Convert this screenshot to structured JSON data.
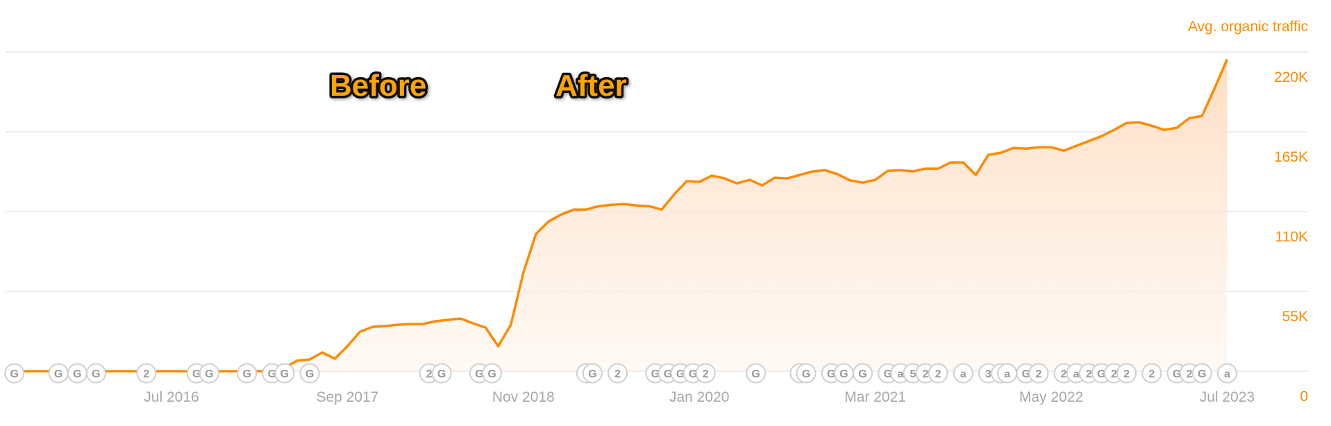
{
  "chart_data": {
    "type": "area",
    "title": "",
    "ylabel": "Avg. organic traffic",
    "y_axis_position": "right",
    "ylim": [
      0,
      220000
    ],
    "y_ticks": [
      0,
      55000,
      110000,
      165000,
      220000
    ],
    "y_tick_labels": [
      "0",
      "55K",
      "110K",
      "165K",
      "220K"
    ],
    "x_tick_labels": [
      "Jul 2016",
      "Sep 2017",
      "Nov 2018",
      "Jan 2020",
      "Mar 2021",
      "May 2022",
      "Jul 2023"
    ],
    "x_ticks": [
      "2016-07",
      "2017-09",
      "2018-11",
      "2020-01",
      "2021-03",
      "2022-05",
      "2023-07"
    ],
    "grid": true,
    "colors": {
      "line": "#ff8a00",
      "fill": "#fde1c8",
      "grid": "#e6e6e6",
      "divider": "#f5b400",
      "annotation_text": "#ffa400"
    },
    "series": [
      {
        "x": [
          "2015-06",
          "2015-07",
          "2015-08",
          "2015-09",
          "2015-10",
          "2015-11",
          "2015-12",
          "2016-01",
          "2016-02",
          "2016-03",
          "2016-04",
          "2016-05",
          "2016-06",
          "2016-07",
          "2016-08",
          "2016-09",
          "2016-10",
          "2016-11",
          "2016-12",
          "2017-01",
          "2017-02",
          "2017-03",
          "2017-04",
          "2017-05",
          "2017-06",
          "2017-07",
          "2017-08",
          "2017-09",
          "2017-10",
          "2017-11",
          "2017-12",
          "2018-01",
          "2018-02",
          "2018-03",
          "2018-04",
          "2018-05",
          "2018-06",
          "2018-07",
          "2018-08",
          "2018-09",
          "2018-10",
          "2018-11",
          "2018-12",
          "2019-01",
          "2019-02",
          "2019-03",
          "2019-04",
          "2019-05",
          "2019-06",
          "2019-07",
          "2019-08",
          "2019-09",
          "2019-10",
          "2019-11",
          "2019-12",
          "2020-01",
          "2020-02",
          "2020-03",
          "2020-04",
          "2020-05",
          "2020-06",
          "2020-07",
          "2020-08",
          "2020-09",
          "2020-10",
          "2020-11",
          "2020-12",
          "2021-01",
          "2021-02",
          "2021-03",
          "2021-04",
          "2021-05",
          "2021-06",
          "2021-07",
          "2021-08",
          "2021-09",
          "2021-10",
          "2021-11",
          "2021-12",
          "2022-01",
          "2022-02",
          "2022-03",
          "2022-04",
          "2022-05",
          "2022-06",
          "2022-07",
          "2022-08",
          "2022-09",
          "2022-10",
          "2022-11",
          "2022-12",
          "2023-01",
          "2023-02",
          "2023-03",
          "2023-04",
          "2023-05",
          "2023-06",
          "2023-07"
        ],
        "values": [
          0,
          0,
          0,
          0,
          0,
          0,
          0,
          0,
          0,
          0,
          0,
          0,
          0,
          0,
          0,
          0,
          0,
          0,
          0,
          0,
          0,
          0,
          2400,
          7200,
          8100,
          12900,
          8600,
          17200,
          27200,
          30600,
          31100,
          32000,
          32500,
          32500,
          34400,
          35400,
          36300,
          33000,
          30100,
          17200,
          32000,
          67900,
          94600,
          103200,
          108000,
          111400,
          111400,
          113800,
          114700,
          115200,
          114200,
          113800,
          111400,
          121900,
          131000,
          130500,
          134800,
          132900,
          129500,
          131900,
          128100,
          133400,
          132900,
          135300,
          137700,
          138600,
          135800,
          131500,
          130000,
          131900,
          138100,
          138600,
          137700,
          139600,
          139600,
          143900,
          143900,
          135300,
          149100,
          150600,
          153900,
          153400,
          154400,
          154400,
          152000,
          155400,
          158700,
          162000,
          166300,
          171100,
          171600,
          169200,
          166300,
          167800,
          174500,
          175900,
          195000,
          215000
        ]
      }
    ],
    "markers": [
      {
        "date": "2015-06-16",
        "label": "G"
      },
      {
        "date": "2015-10-01",
        "label": "G"
      },
      {
        "date": "2015-11-16",
        "label": "G"
      },
      {
        "date": "2016-01-01",
        "label": "G"
      },
      {
        "date": "2016-05-01",
        "label": "2"
      },
      {
        "date": "2016-09-01",
        "label": "G"
      },
      {
        "date": "2016-10-01",
        "label": "G"
      },
      {
        "date": "2017-01-01",
        "label": "G"
      },
      {
        "date": "2017-03-01",
        "label": "G"
      },
      {
        "date": "2017-04-01",
        "label": "G"
      },
      {
        "date": "2017-06-01",
        "label": "G"
      },
      {
        "date": "2018-03-16",
        "label": "2"
      },
      {
        "date": "2018-04-16",
        "label": "G"
      },
      {
        "date": "2018-07-16",
        "label": "G"
      },
      {
        "date": "2018-08-16",
        "label": "G"
      },
      {
        "date": "2019-04-01",
        "label": "G"
      },
      {
        "date": "2019-04-16",
        "label": "G"
      },
      {
        "date": "2019-06-16",
        "label": "2"
      },
      {
        "date": "2019-09-16",
        "label": "G"
      },
      {
        "date": "2019-10-16",
        "label": "G"
      },
      {
        "date": "2019-11-16",
        "label": "G"
      },
      {
        "date": "2019-12-16",
        "label": "G"
      },
      {
        "date": "2020-01-16",
        "label": "2"
      },
      {
        "date": "2020-05-16",
        "label": "G"
      },
      {
        "date": "2020-09-01",
        "label": "G"
      },
      {
        "date": "2020-09-16",
        "label": "G"
      },
      {
        "date": "2020-11-16",
        "label": "G"
      },
      {
        "date": "2020-12-16",
        "label": "G"
      },
      {
        "date": "2021-02-01",
        "label": "G"
      },
      {
        "date": "2021-04-01",
        "label": "G"
      },
      {
        "date": "2021-05-01",
        "label": "a"
      },
      {
        "date": "2021-06-01",
        "label": "5"
      },
      {
        "date": "2021-07-01",
        "label": "2"
      },
      {
        "date": "2021-08-01",
        "label": "2"
      },
      {
        "date": "2021-10-01",
        "label": "a"
      },
      {
        "date": "2021-12-01",
        "label": "3"
      },
      {
        "date": "2022-01-01",
        "label": "G"
      },
      {
        "date": "2022-01-16",
        "label": "a"
      },
      {
        "date": "2022-03-01",
        "label": "G"
      },
      {
        "date": "2022-04-01",
        "label": "2"
      },
      {
        "date": "2022-06-01",
        "label": "2"
      },
      {
        "date": "2022-07-01",
        "label": "a"
      },
      {
        "date": "2022-08-01",
        "label": "2"
      },
      {
        "date": "2022-09-01",
        "label": "G"
      },
      {
        "date": "2022-10-01",
        "label": "2"
      },
      {
        "date": "2022-11-01",
        "label": "2"
      },
      {
        "date": "2023-01-01",
        "label": "2"
      },
      {
        "date": "2023-03-01",
        "label": "G"
      },
      {
        "date": "2023-04-01",
        "label": "2"
      },
      {
        "date": "2023-05-01",
        "label": "G"
      },
      {
        "date": "2023-07-01",
        "label": "a"
      }
    ],
    "annotations": {
      "divider_date": "2018-08-22",
      "before_label": "Before",
      "after_label": "After"
    }
  }
}
